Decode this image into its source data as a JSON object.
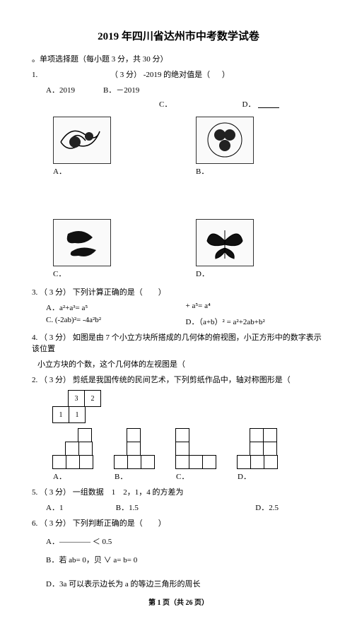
{
  "title": "2019 年四川省达州市中考数学试卷",
  "section1_header": "。单项选择题（每小题 3 分，共 30 分）",
  "q1": {
    "num": "1.",
    "score": "（ 3 分）",
    "stem": "-2019 的绝对值是（",
    "optA": "A．2019",
    "optB": "B．－2019",
    "optC": "C．",
    "optD": "D．"
  },
  "q2": {
    "num": "2.",
    "score": "（ 3 分）",
    "stem": "剪纸是我国传统的民间艺术，下列剪纸作品中，轴对称图形是（",
    "labels": [
      "A．",
      "B．",
      "C．",
      "D．"
    ],
    "alts": [
      "dragon-pattern",
      "circle-pattern",
      "fish-pattern",
      "butterfly-pattern"
    ]
  },
  "q3": {
    "num": "3.",
    "score": "（ 3 分）",
    "stem": "下列计算正确的是（　　）",
    "optA": "A．a²+a³= a⁵",
    "optAr": "+ a⁵= a⁴",
    "optC_l": "C.  (-2ab)²= -4a²b²",
    "optD_r": "D．（a+b）² = a²+2ab+b²"
  },
  "q4": {
    "num": "4.",
    "score": "（ 3 分）",
    "stem1": "如图是由 7 个小立方块所搭成的几何体的俯视图，小正方形中的数字表示该位置",
    "stem2": "小立方块的个数，这个几何体的左视图是（",
    "net_rows": [
      [
        null,
        "3",
        "2"
      ],
      [
        "1",
        "1",
        null
      ]
    ],
    "labels": [
      "A．",
      "B．",
      "C．",
      "D．"
    ],
    "shapes": [
      [
        [
          0,
          0,
          1
        ],
        [
          0,
          1,
          1
        ],
        [
          1,
          1,
          1
        ]
      ],
      [
        [
          0,
          1,
          0
        ],
        [
          0,
          1,
          0
        ],
        [
          1,
          1,
          1
        ]
      ],
      [
        [
          1,
          0,
          0
        ],
        [
          1,
          0,
          0
        ],
        [
          1,
          1,
          1
        ]
      ],
      [
        [
          0,
          1,
          1
        ],
        [
          0,
          1,
          1
        ],
        [
          1,
          1,
          1
        ]
      ]
    ]
  },
  "q5": {
    "num": "5.",
    "score": "（ 3 分）",
    "stem": "一组数据　1　2，1，4 的方差为",
    "optA": "A．1",
    "optB": "B．1.5",
    "optD": "D．2.5"
  },
  "q6": {
    "num": "6.",
    "score": "（ 3 分）",
    "stem": "下列判断正确的是（　　）",
    "optA": "A．———— ＜ 0.5",
    "optB": "B．若 ab= 0，贝 ∨ a= b= 0",
    "optD": "D．3a 可以表示边长为 a 的等边三角形的周长"
  },
  "footer": "第 1 页（共 26 页）"
}
